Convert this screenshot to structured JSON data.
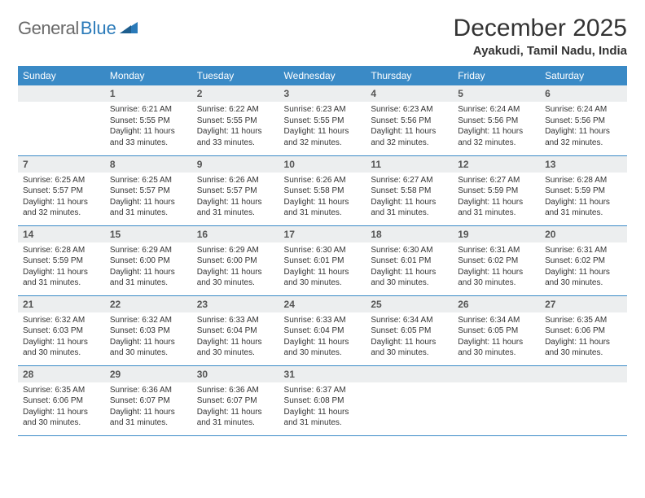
{
  "brand": {
    "part1": "General",
    "part2": "Blue"
  },
  "title": "December 2025",
  "location": "Ayakudi, Tamil Nadu, India",
  "colors": {
    "header_bg": "#3a8ac6",
    "header_fg": "#ffffff",
    "daynum_bg": "#eceeef",
    "row_divider": "#3a8ac6",
    "logo_gray": "#6a6a6a",
    "logo_blue": "#2a7ab9",
    "text": "#333333"
  },
  "day_headers": [
    "Sunday",
    "Monday",
    "Tuesday",
    "Wednesday",
    "Thursday",
    "Friday",
    "Saturday"
  ],
  "weeks": [
    [
      null,
      {
        "n": "1",
        "sr": "6:21 AM",
        "ss": "5:55 PM",
        "dl": "11 hours and 33 minutes."
      },
      {
        "n": "2",
        "sr": "6:22 AM",
        "ss": "5:55 PM",
        "dl": "11 hours and 33 minutes."
      },
      {
        "n": "3",
        "sr": "6:23 AM",
        "ss": "5:55 PM",
        "dl": "11 hours and 32 minutes."
      },
      {
        "n": "4",
        "sr": "6:23 AM",
        "ss": "5:56 PM",
        "dl": "11 hours and 32 minutes."
      },
      {
        "n": "5",
        "sr": "6:24 AM",
        "ss": "5:56 PM",
        "dl": "11 hours and 32 minutes."
      },
      {
        "n": "6",
        "sr": "6:24 AM",
        "ss": "5:56 PM",
        "dl": "11 hours and 32 minutes."
      }
    ],
    [
      {
        "n": "7",
        "sr": "6:25 AM",
        "ss": "5:57 PM",
        "dl": "11 hours and 32 minutes."
      },
      {
        "n": "8",
        "sr": "6:25 AM",
        "ss": "5:57 PM",
        "dl": "11 hours and 31 minutes."
      },
      {
        "n": "9",
        "sr": "6:26 AM",
        "ss": "5:57 PM",
        "dl": "11 hours and 31 minutes."
      },
      {
        "n": "10",
        "sr": "6:26 AM",
        "ss": "5:58 PM",
        "dl": "11 hours and 31 minutes."
      },
      {
        "n": "11",
        "sr": "6:27 AM",
        "ss": "5:58 PM",
        "dl": "11 hours and 31 minutes."
      },
      {
        "n": "12",
        "sr": "6:27 AM",
        "ss": "5:59 PM",
        "dl": "11 hours and 31 minutes."
      },
      {
        "n": "13",
        "sr": "6:28 AM",
        "ss": "5:59 PM",
        "dl": "11 hours and 31 minutes."
      }
    ],
    [
      {
        "n": "14",
        "sr": "6:28 AM",
        "ss": "5:59 PM",
        "dl": "11 hours and 31 minutes."
      },
      {
        "n": "15",
        "sr": "6:29 AM",
        "ss": "6:00 PM",
        "dl": "11 hours and 31 minutes."
      },
      {
        "n": "16",
        "sr": "6:29 AM",
        "ss": "6:00 PM",
        "dl": "11 hours and 30 minutes."
      },
      {
        "n": "17",
        "sr": "6:30 AM",
        "ss": "6:01 PM",
        "dl": "11 hours and 30 minutes."
      },
      {
        "n": "18",
        "sr": "6:30 AM",
        "ss": "6:01 PM",
        "dl": "11 hours and 30 minutes."
      },
      {
        "n": "19",
        "sr": "6:31 AM",
        "ss": "6:02 PM",
        "dl": "11 hours and 30 minutes."
      },
      {
        "n": "20",
        "sr": "6:31 AM",
        "ss": "6:02 PM",
        "dl": "11 hours and 30 minutes."
      }
    ],
    [
      {
        "n": "21",
        "sr": "6:32 AM",
        "ss": "6:03 PM",
        "dl": "11 hours and 30 minutes."
      },
      {
        "n": "22",
        "sr": "6:32 AM",
        "ss": "6:03 PM",
        "dl": "11 hours and 30 minutes."
      },
      {
        "n": "23",
        "sr": "6:33 AM",
        "ss": "6:04 PM",
        "dl": "11 hours and 30 minutes."
      },
      {
        "n": "24",
        "sr": "6:33 AM",
        "ss": "6:04 PM",
        "dl": "11 hours and 30 minutes."
      },
      {
        "n": "25",
        "sr": "6:34 AM",
        "ss": "6:05 PM",
        "dl": "11 hours and 30 minutes."
      },
      {
        "n": "26",
        "sr": "6:34 AM",
        "ss": "6:05 PM",
        "dl": "11 hours and 30 minutes."
      },
      {
        "n": "27",
        "sr": "6:35 AM",
        "ss": "6:06 PM",
        "dl": "11 hours and 30 minutes."
      }
    ],
    [
      {
        "n": "28",
        "sr": "6:35 AM",
        "ss": "6:06 PM",
        "dl": "11 hours and 30 minutes."
      },
      {
        "n": "29",
        "sr": "6:36 AM",
        "ss": "6:07 PM",
        "dl": "11 hours and 31 minutes."
      },
      {
        "n": "30",
        "sr": "6:36 AM",
        "ss": "6:07 PM",
        "dl": "11 hours and 31 minutes."
      },
      {
        "n": "31",
        "sr": "6:37 AM",
        "ss": "6:08 PM",
        "dl": "11 hours and 31 minutes."
      },
      null,
      null,
      null
    ]
  ],
  "labels": {
    "sunrise": "Sunrise:",
    "sunset": "Sunset:",
    "daylight": "Daylight:"
  }
}
